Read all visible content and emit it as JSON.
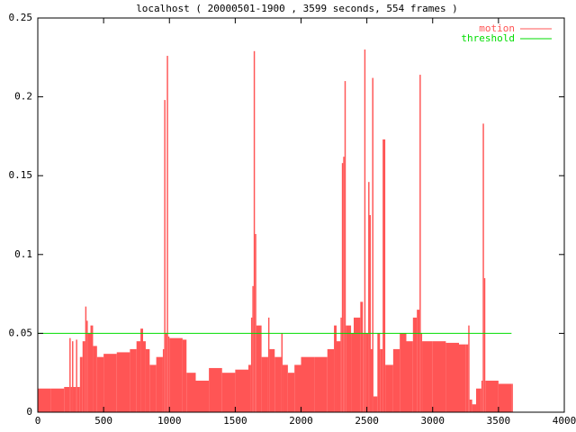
{
  "chart_data": {
    "type": "impulse",
    "title": "localhost ( 20000501-1900 , 3599 seconds, 554 frames )",
    "series": [
      {
        "name": "motion",
        "color": "#ff5555",
        "x": [
          0,
          100,
          200,
          240,
          250,
          260,
          270,
          290,
          300,
          320,
          340,
          360,
          370,
          380,
          400,
          420,
          450,
          500,
          600,
          700,
          750,
          780,
          800,
          820,
          850,
          900,
          950,
          960,
          970,
          980,
          990,
          1000,
          1100,
          1130,
          1200,
          1300,
          1400,
          1500,
          1600,
          1620,
          1630,
          1640,
          1650,
          1660,
          1700,
          1750,
          1760,
          1800,
          1850,
          1860,
          1900,
          1950,
          2000,
          2100,
          2200,
          2250,
          2270,
          2300,
          2310,
          2320,
          2330,
          2340,
          2380,
          2400,
          2450,
          2470,
          2480,
          2490,
          2510,
          2520,
          2530,
          2540,
          2550,
          2580,
          2600,
          2620,
          2640,
          2700,
          2750,
          2800,
          2850,
          2880,
          2900,
          2910,
          2920,
          3000,
          3100,
          3200,
          3250,
          3270,
          3280,
          3300,
          3330,
          3370,
          3380,
          3390,
          3400,
          3500,
          3599
        ],
        "values": [
          0.015,
          0.015,
          0.016,
          0.047,
          0.016,
          0.045,
          0.016,
          0.046,
          0.016,
          0.035,
          0.045,
          0.067,
          0.058,
          0.05,
          0.055,
          0.042,
          0.035,
          0.037,
          0.038,
          0.04,
          0.045,
          0.053,
          0.045,
          0.04,
          0.03,
          0.035,
          0.04,
          0.198,
          0.05,
          0.226,
          0.048,
          0.047,
          0.046,
          0.025,
          0.02,
          0.028,
          0.025,
          0.027,
          0.03,
          0.06,
          0.08,
          0.229,
          0.113,
          0.055,
          0.035,
          0.06,
          0.04,
          0.035,
          0.05,
          0.03,
          0.025,
          0.03,
          0.035,
          0.035,
          0.04,
          0.055,
          0.045,
          0.06,
          0.158,
          0.162,
          0.21,
          0.055,
          0.05,
          0.06,
          0.07,
          0.05,
          0.23,
          0.05,
          0.146,
          0.125,
          0.04,
          0.212,
          0.01,
          0.05,
          0.04,
          0.173,
          0.03,
          0.04,
          0.05,
          0.045,
          0.06,
          0.065,
          0.214,
          0.05,
          0.045,
          0.045,
          0.044,
          0.043,
          0.043,
          0.055,
          0.008,
          0.005,
          0.015,
          0.02,
          0.183,
          0.085,
          0.02,
          0.018,
          0.018
        ]
      },
      {
        "name": "threshold",
        "color": "#00dd00",
        "x": [
          0,
          3599
        ],
        "values": [
          0.05,
          0.05
        ]
      }
    ],
    "xlim": [
      0,
      4000
    ],
    "xticks": [
      0,
      500,
      1000,
      1500,
      2000,
      2500,
      3000,
      3500,
      4000
    ],
    "ylim": [
      0,
      0.25
    ],
    "yticks": [
      0,
      0.05,
      0.1,
      0.15,
      0.2,
      0.25
    ],
    "legend": "top-right"
  }
}
